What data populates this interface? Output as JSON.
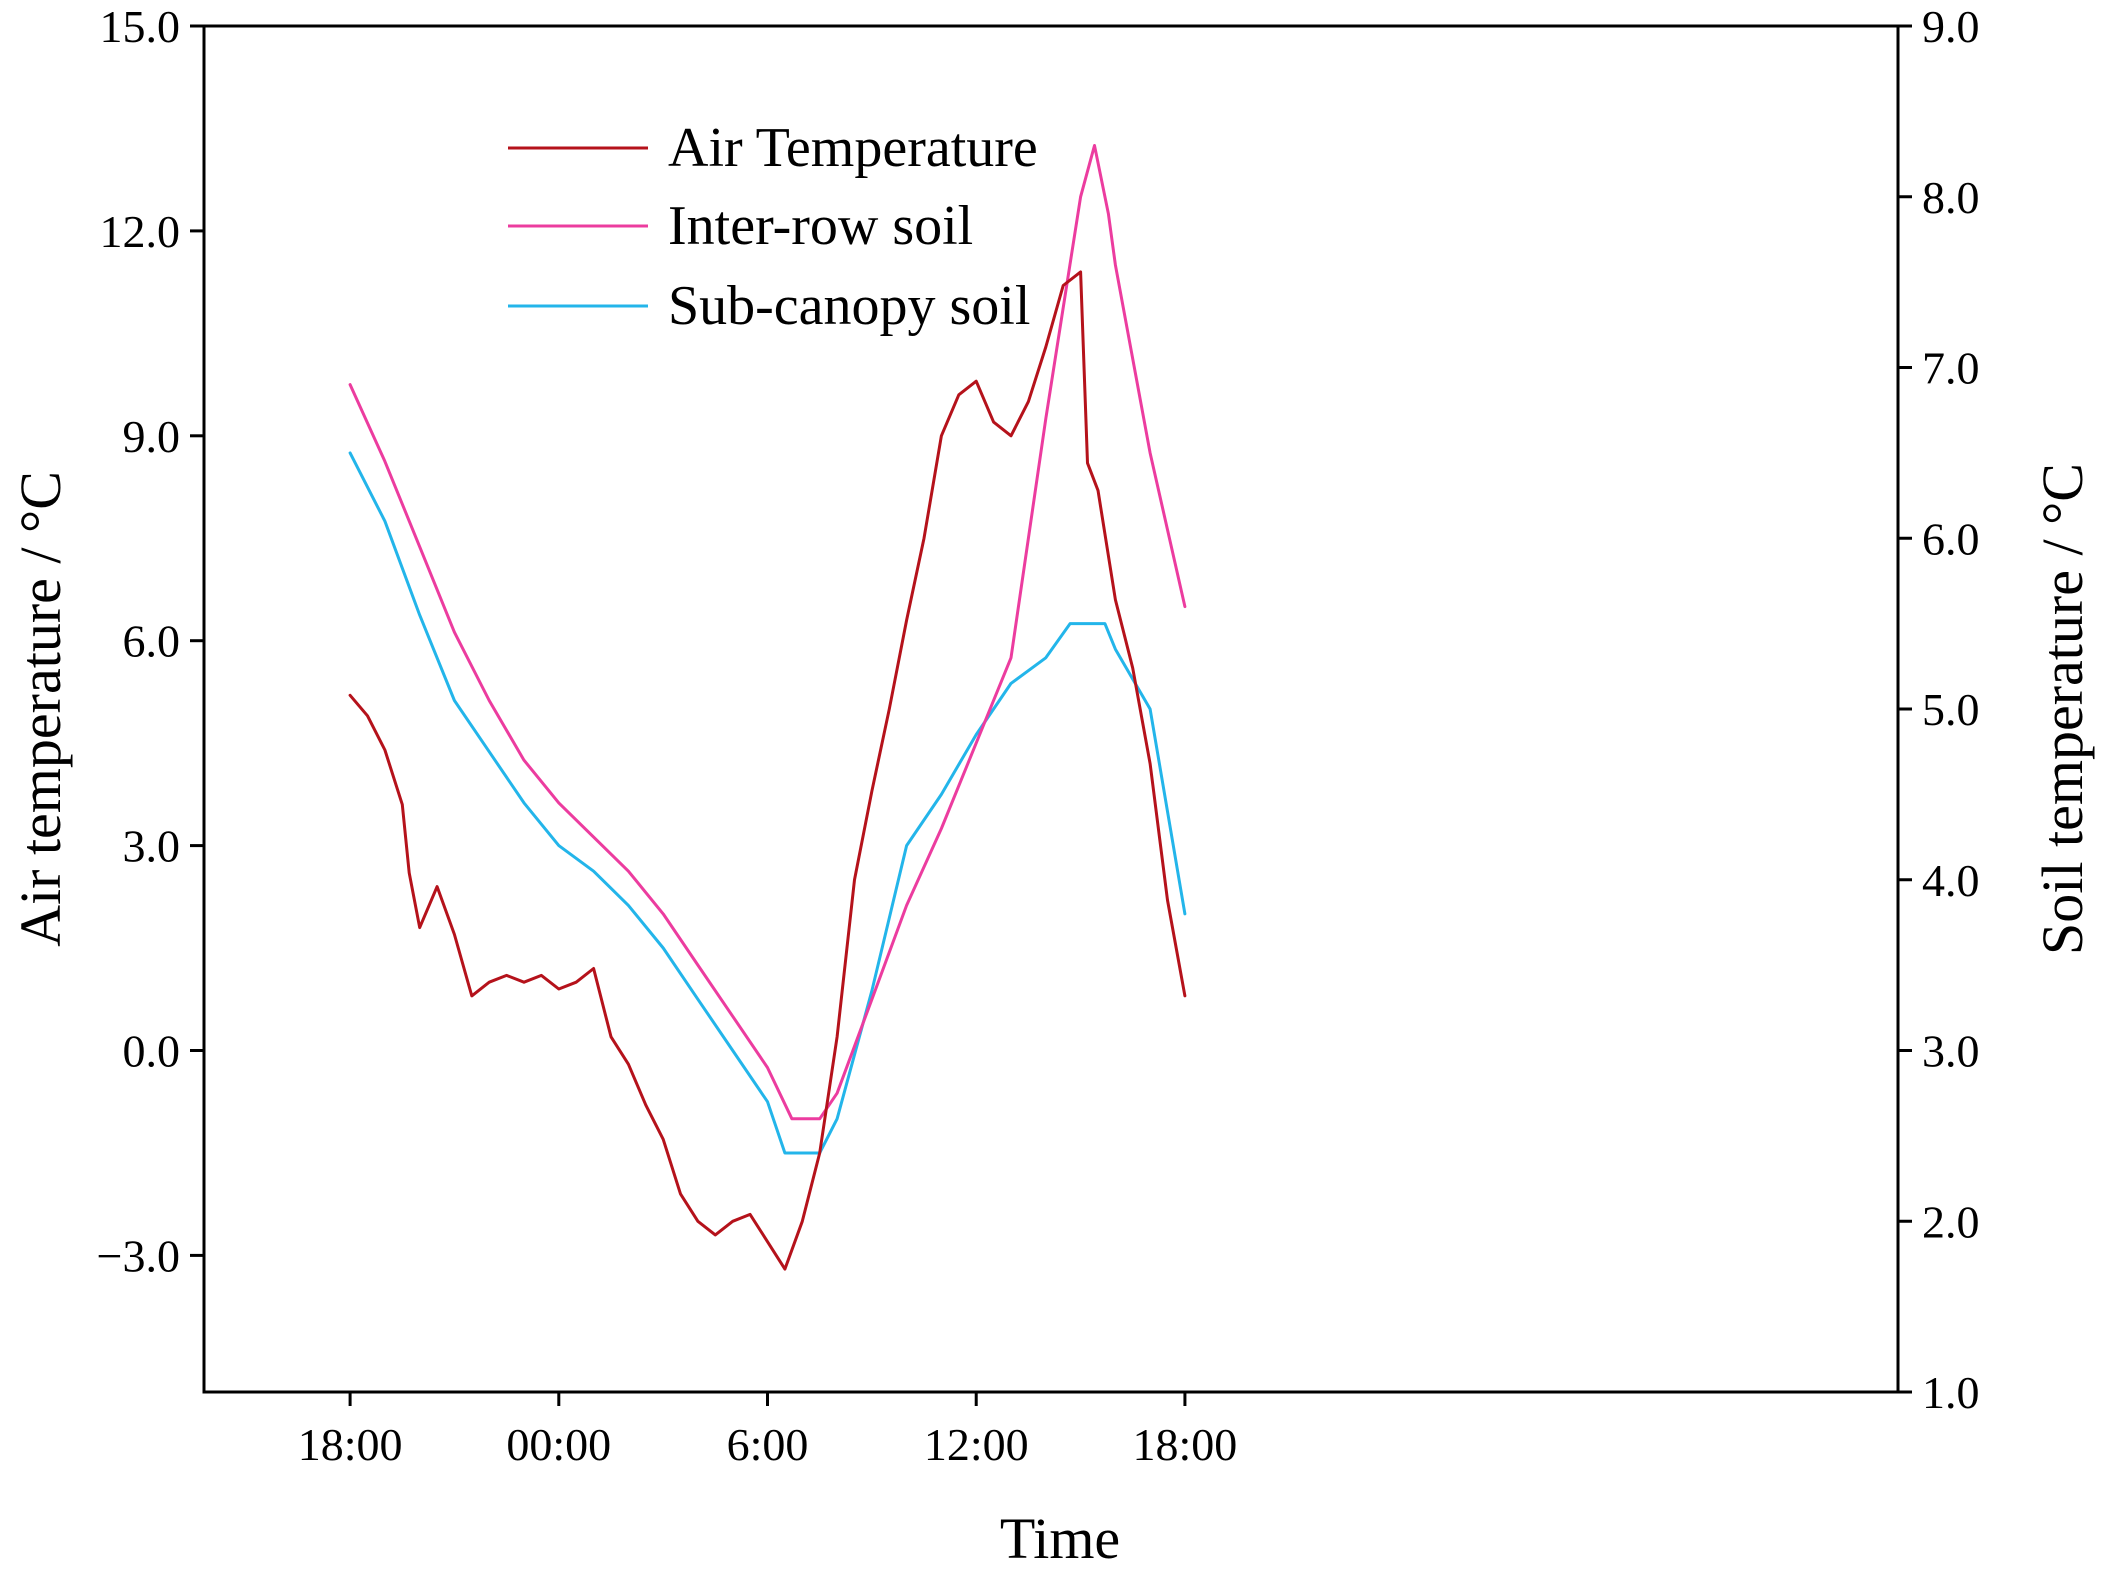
{
  "chart_data": {
    "type": "line",
    "title": "",
    "xlabel": "Time",
    "ylabel_left": "Air temperature / °C",
    "ylabel_right": "Soil temperature / °C",
    "x_unit": "hours since 18:00 (day 1)",
    "xlim": [
      -4.2,
      44.5
    ],
    "x_ticks": [
      {
        "value": 0,
        "label": "18:00"
      },
      {
        "value": 6,
        "label": "00:00"
      },
      {
        "value": 12,
        "label": "6:00"
      },
      {
        "value": 18,
        "label": "12:00"
      },
      {
        "value": 24,
        "label": "18:00"
      }
    ],
    "ylim_left": [
      -5.0,
      15.0
    ],
    "y_ticks_left": [
      "15.0",
      "12.0",
      "9.0",
      "6.0",
      "3.0",
      "0.0",
      "−3.0"
    ],
    "y_tick_values_left": [
      15,
      12,
      9,
      6,
      3,
      0,
      -3
    ],
    "ylim_right": [
      1.0,
      9.0
    ],
    "y_ticks_right": [
      "9.0",
      "8.0",
      "7.0",
      "6.0",
      "5.0",
      "4.0",
      "3.0",
      "2.0",
      "1.0"
    ],
    "y_tick_values_right": [
      9,
      8,
      7,
      6,
      5,
      4,
      3,
      2,
      1
    ],
    "legend_position": "top-left",
    "series": [
      {
        "name": "Air Temperature",
        "axis": "left",
        "color": "#b5121b",
        "x": [
          0,
          0.5,
          1,
          1.5,
          1.7,
          2,
          2.5,
          3,
          3.5,
          4,
          4.5,
          5,
          5.5,
          6,
          6.5,
          7,
          7.5,
          8,
          8.5,
          9,
          9.5,
          10,
          10.5,
          11,
          11.5,
          12,
          12.5,
          13,
          13.5,
          14,
          14.5,
          15,
          15.5,
          16,
          16.5,
          17,
          17.5,
          18,
          18.5,
          19,
          19.5,
          20,
          20.5,
          21,
          21.2,
          21.5,
          22,
          22.5,
          23,
          23.5,
          24
        ],
        "values": [
          5.2,
          4.9,
          4.4,
          3.6,
          2.6,
          1.8,
          2.4,
          1.7,
          0.8,
          1.0,
          1.1,
          1.0,
          1.1,
          0.9,
          1.0,
          1.2,
          0.2,
          -0.2,
          -0.8,
          -1.3,
          -2.1,
          -2.5,
          -2.7,
          -2.5,
          -2.4,
          -2.8,
          -3.2,
          -2.5,
          -1.5,
          0.2,
          2.5,
          3.8,
          5.0,
          6.3,
          7.5,
          9.0,
          9.6,
          9.8,
          9.2,
          9.0,
          9.5,
          10.3,
          11.2,
          11.4,
          8.6,
          8.2,
          6.6,
          5.6,
          4.2,
          2.2,
          0.8
        ]
      },
      {
        "name": "Inter-row soil",
        "axis": "right",
        "color": "#ec3c9f",
        "x": [
          0,
          1,
          2,
          3,
          4,
          5,
          6,
          7,
          8,
          9,
          10,
          11,
          12,
          12.7,
          13.5,
          14,
          15,
          16,
          17,
          18,
          19,
          20,
          21,
          21.4,
          21.8,
          22,
          23,
          24
        ],
        "values": [
          6.9,
          6.45,
          5.95,
          5.45,
          5.05,
          4.7,
          4.45,
          4.25,
          4.05,
          3.8,
          3.5,
          3.2,
          2.9,
          2.6,
          2.6,
          2.75,
          3.3,
          3.85,
          4.3,
          4.8,
          5.3,
          6.7,
          8.0,
          8.3,
          7.9,
          7.6,
          6.5,
          5.6
        ]
      },
      {
        "name": "Sub-canopy soil",
        "axis": "right",
        "color": "#23b5ea",
        "x": [
          0,
          1,
          2,
          3,
          4,
          5,
          6,
          7,
          8,
          9,
          10,
          11,
          12,
          12.5,
          13.5,
          14,
          15,
          16,
          17,
          18,
          19,
          20,
          20.7,
          21,
          21.7,
          22,
          23,
          24
        ],
        "values": [
          6.5,
          6.1,
          5.55,
          5.05,
          4.75,
          4.45,
          4.2,
          4.05,
          3.85,
          3.6,
          3.3,
          3.0,
          2.7,
          2.4,
          2.4,
          2.6,
          3.35,
          4.2,
          4.5,
          4.85,
          5.15,
          5.3,
          5.5,
          5.5,
          5.5,
          5.35,
          5.0,
          3.8
        ]
      }
    ]
  }
}
